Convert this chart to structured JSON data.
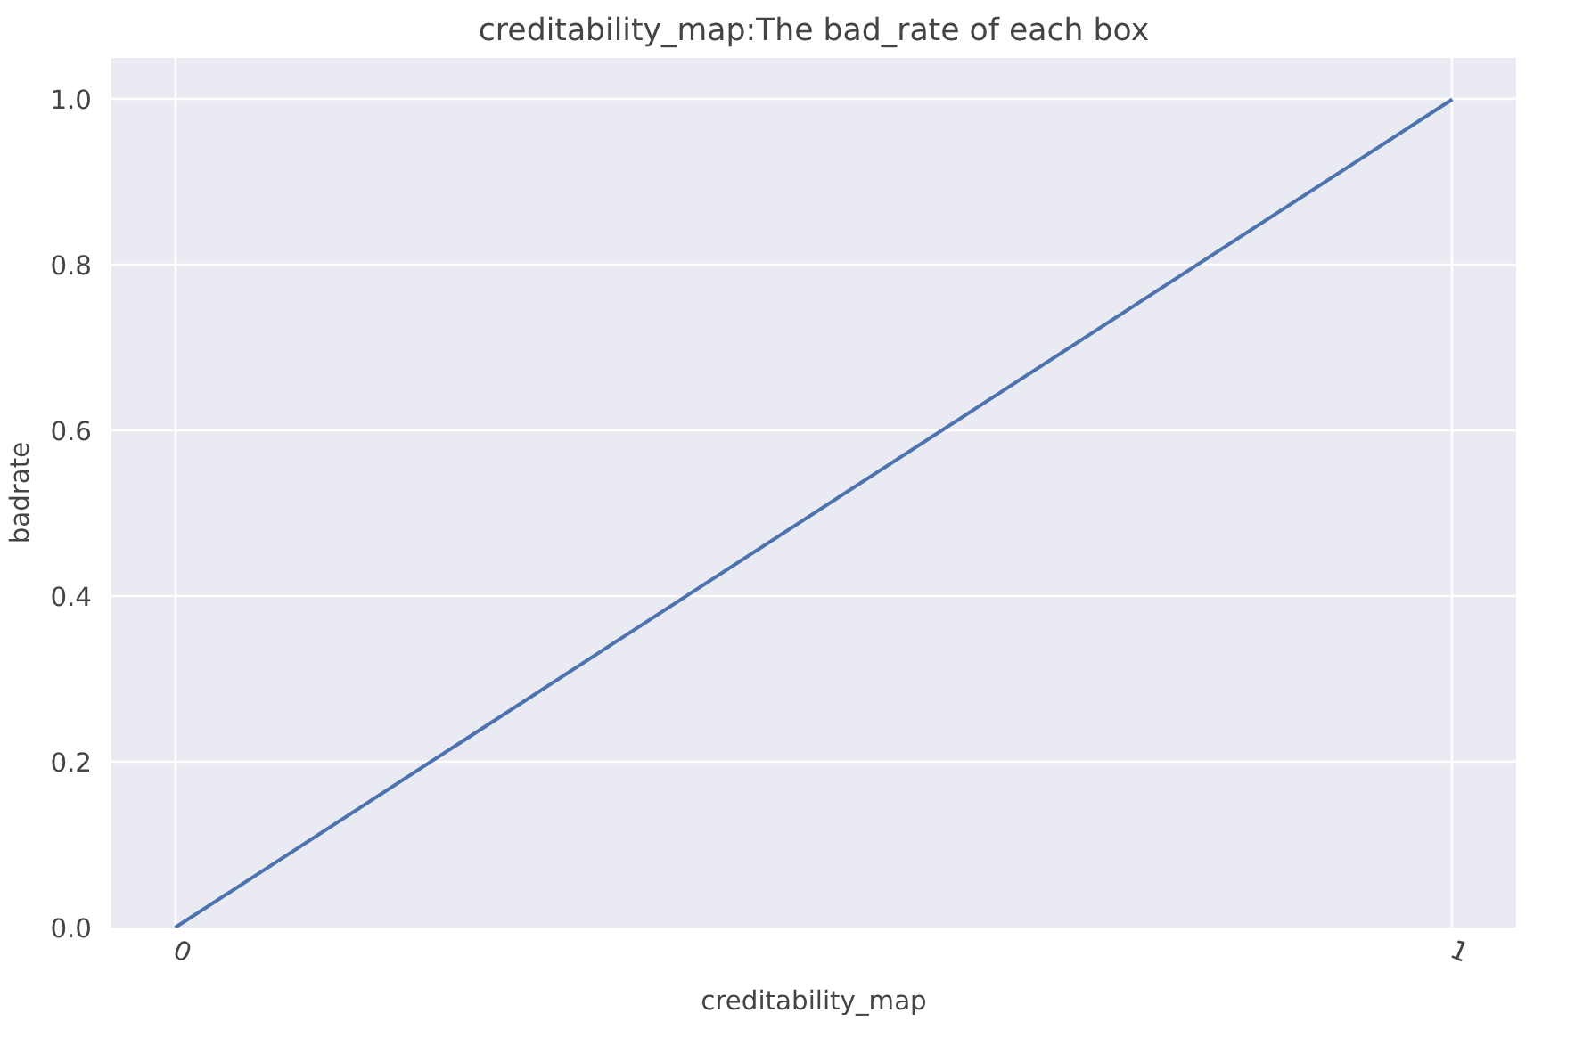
{
  "chart_data": {
    "type": "line",
    "title": "creditability_map:The bad_rate of each box",
    "xlabel": "creditability_map",
    "ylabel": "badrate",
    "x": [
      0,
      1
    ],
    "series": [
      {
        "color": "#4c72b0",
        "values": [
          0.0,
          1.0
        ]
      }
    ],
    "xlim": [
      -0.05,
      1.05
    ],
    "xticks": [
      0,
      1
    ],
    "ylim": [
      0,
      1.05
    ],
    "yticks": [
      {
        "value": 0,
        "label": "0.0"
      },
      {
        "value": 0.2,
        "label": "0.2"
      },
      {
        "value": 0.4,
        "label": "0.4"
      },
      {
        "value": 0.6,
        "label": "0.6"
      },
      {
        "value": 0.8,
        "label": "0.8"
      },
      {
        "value": 1.0,
        "label": "1.0"
      }
    ],
    "grid": true,
    "line_style": "solid"
  }
}
